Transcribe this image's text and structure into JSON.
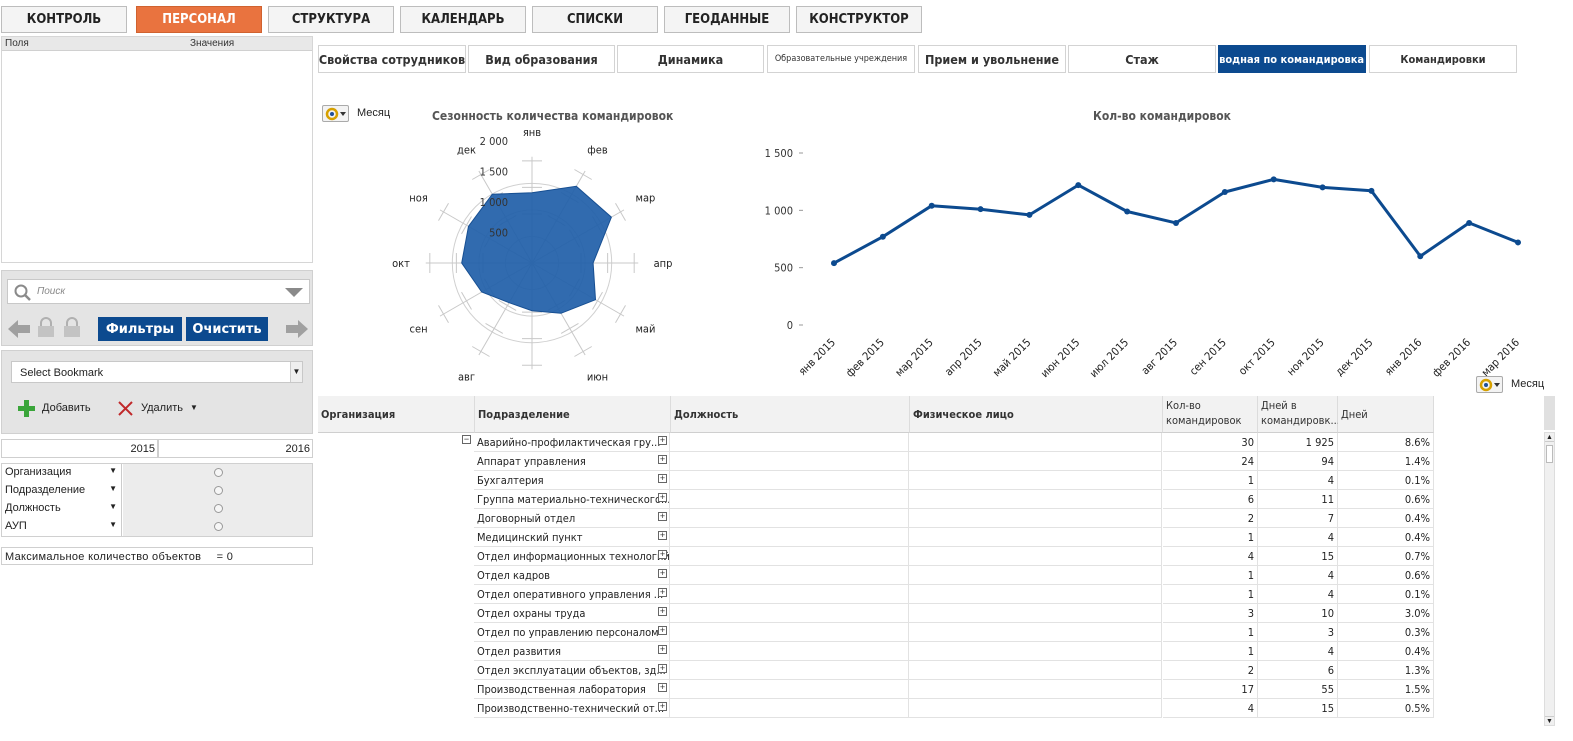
{
  "nav": [
    {
      "label": "КОНТРОЛЬ",
      "active": false
    },
    {
      "label": "ПЕРСОНАЛ",
      "active": true
    },
    {
      "label": "СТРУКТУРА",
      "active": false
    },
    {
      "label": "КАЛЕНДАРЬ",
      "active": false
    },
    {
      "label": "СПИСКИ",
      "active": false
    },
    {
      "label": "ГЕОДАННЫЕ",
      "active": false
    },
    {
      "label": "КОНСТРУКТОР",
      "active": false
    }
  ],
  "fields_panel": {
    "col_fields": "Поля",
    "col_values": "Значения"
  },
  "search": {
    "placeholder": "Поиск"
  },
  "buttons": {
    "filters": "Фильтры",
    "clear": "Очистить"
  },
  "bookmark": {
    "select": "Select Bookmark",
    "add": "Добавить",
    "delete": "Удалить"
  },
  "years": [
    "2015",
    "2016"
  ],
  "filters": [
    "Организация",
    "Подразделение",
    "Должность",
    "АУП"
  ],
  "max_objects": {
    "label": "Максимальное количество объектов",
    "value": "= 0"
  },
  "tabs": [
    {
      "label": "Свойства сотрудников",
      "active": false
    },
    {
      "label": "Вид образования",
      "active": false
    },
    {
      "label": "Динамика",
      "active": false
    },
    {
      "label": "Образовательные учреждения",
      "active": false
    },
    {
      "label": "Прием и увольнение",
      "active": false
    },
    {
      "label": "Стаж",
      "active": false
    },
    {
      "label": "Сводная по командировкам",
      "active": true
    },
    {
      "label": "Командировки",
      "active": false
    }
  ],
  "cycle_label": "Месяц",
  "chart_data": [
    {
      "type": "radar",
      "title": "Сезонность количества командировок",
      "categories": [
        "янв",
        "фев",
        "мар",
        "апр",
        "май",
        "июн",
        "июл",
        "авг",
        "сен",
        "окт",
        "ноя",
        "дек"
      ],
      "values": [
        1150,
        1450,
        1500,
        1000,
        1200,
        950,
        780,
        750,
        950,
        1150,
        1200,
        1300
      ],
      "rlim": [
        0,
        2000
      ],
      "ticks": [
        "500",
        "1 000",
        "1 500",
        "2 000"
      ]
    },
    {
      "type": "line",
      "title": "Кол-во командировок",
      "categories": [
        "янв 2015",
        "фев 2015",
        "мар 2015",
        "апр 2015",
        "май 2015",
        "июн 2015",
        "июл 2015",
        "авг 2015",
        "сен 2015",
        "окт 2015",
        "ноя 2015",
        "дек 2015",
        "янв 2016",
        "фев 2016",
        "мар 2016"
      ],
      "values": [
        540,
        770,
        1040,
        1010,
        960,
        1220,
        990,
        890,
        1160,
        1270,
        1200,
        1170,
        600,
        890,
        720
      ],
      "ylim": [
        0,
        1500
      ],
      "yticks": [
        "0",
        "500",
        "1 000",
        "1 500"
      ],
      "color": "#0c4a8f"
    }
  ],
  "table": {
    "headers": {
      "org": "Организация",
      "dept": "Подразделение",
      "pos": "Должность",
      "person": "Физическое лицо",
      "trips": "Кол-во командировок",
      "days": "Дней в командировк...",
      "share": "Дней"
    },
    "rows": [
      {
        "dept": "Аварийно-профилактическая гру...",
        "trips": "30",
        "days": "1 925",
        "share": "8.6%"
      },
      {
        "dept": "Аппарат управления",
        "trips": "24",
        "days": "94",
        "share": "1.4%"
      },
      {
        "dept": "Бухгалтерия",
        "trips": "1",
        "days": "4",
        "share": "0.1%"
      },
      {
        "dept": "Группа материально-технического...",
        "trips": "6",
        "days": "11",
        "share": "0.6%"
      },
      {
        "dept": "Договорный отдел",
        "trips": "2",
        "days": "7",
        "share": "0.4%"
      },
      {
        "dept": "Медицинский пункт",
        "trips": "1",
        "days": "4",
        "share": "0.4%"
      },
      {
        "dept": "Отдел информационных технологий",
        "trips": "4",
        "days": "15",
        "share": "0.7%"
      },
      {
        "dept": "Отдел кадров",
        "trips": "1",
        "days": "4",
        "share": "0.6%"
      },
      {
        "dept": "Отдел оперативного управления ...",
        "trips": "1",
        "days": "4",
        "share": "0.1%"
      },
      {
        "dept": "Отдел охраны труда",
        "trips": "3",
        "days": "10",
        "share": "3.0%"
      },
      {
        "dept": "Отдел по управлению персоналом",
        "trips": "1",
        "days": "3",
        "share": "0.3%"
      },
      {
        "dept": "Отдел развития",
        "trips": "1",
        "days": "4",
        "share": "0.4%"
      },
      {
        "dept": "Отдел эксплуатации объектов, зд...",
        "trips": "2",
        "days": "6",
        "share": "1.3%"
      },
      {
        "dept": "Производственная лаборатория",
        "trips": "17",
        "days": "55",
        "share": "1.5%"
      },
      {
        "dept": "Производственно-технический от...",
        "trips": "4",
        "days": "15",
        "share": "0.5%"
      }
    ]
  }
}
